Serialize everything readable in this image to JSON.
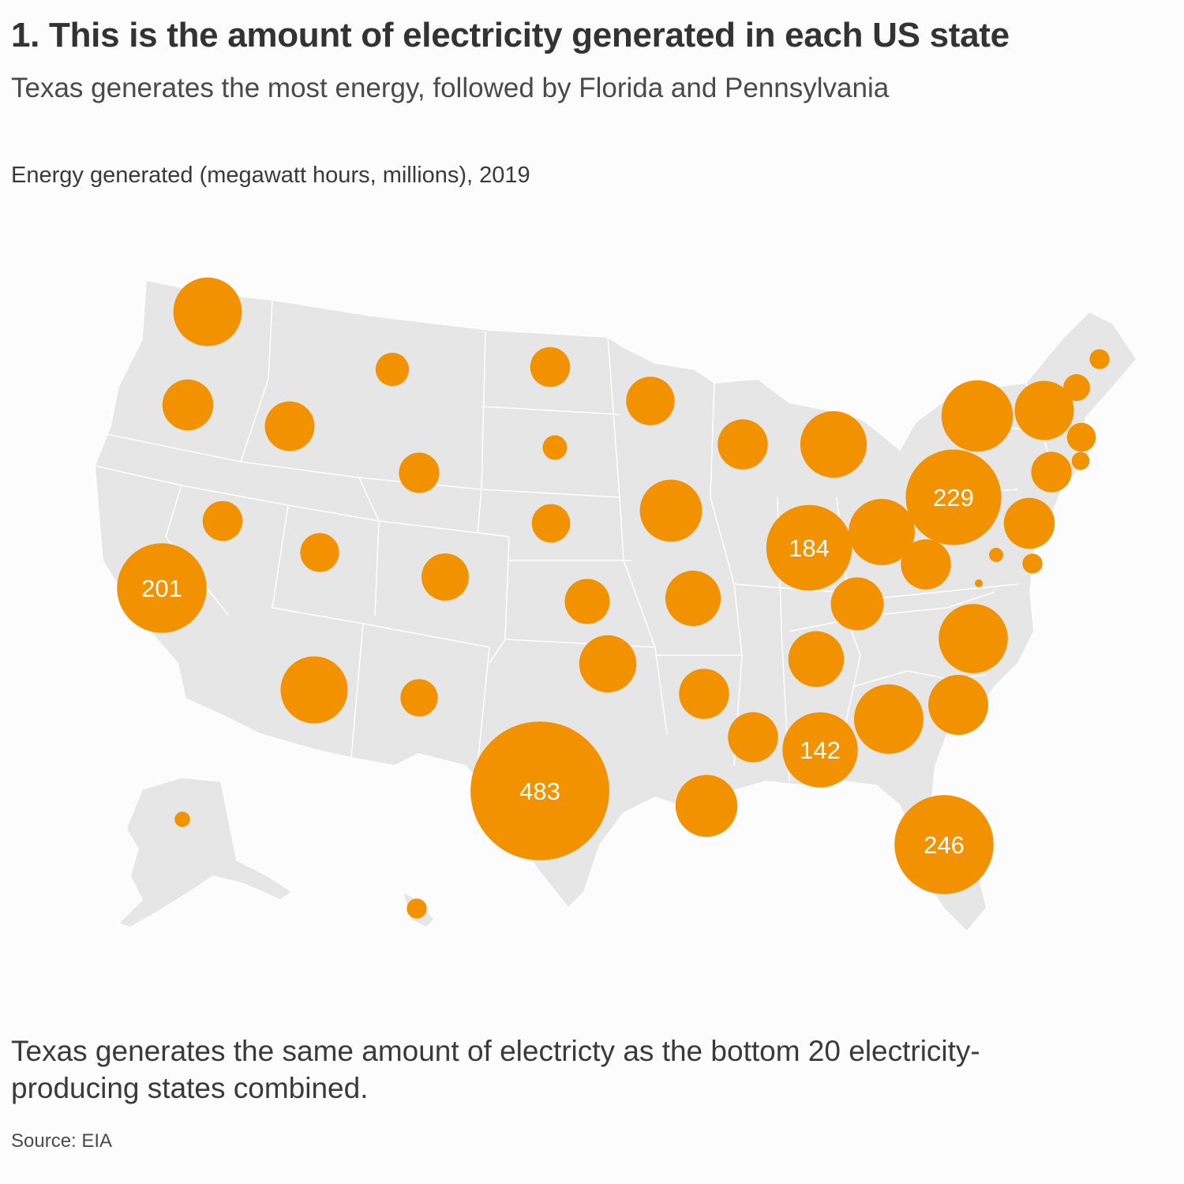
{
  "title": "1. This is the amount of electricity generated in each US state",
  "subtitle": "Texas generates the most energy, followed by Florida and Pennsylvania",
  "unit_label": "Energy generated (megawatt hours, millions), 2019",
  "note": "Texas generates the same amount of electricty as the bottom 20 electricity-producing states combined.",
  "source": "Source: EIA",
  "colors": {
    "bubble": "#f29200",
    "land": "#e6e6e6",
    "border": "#ffffff",
    "label": "#ffffff"
  },
  "chart_data": {
    "type": "proportional-symbol-map",
    "value_unit": "megawatt hours, millions",
    "year": "2019",
    "states": [
      {
        "state": "WA",
        "value": 118,
        "label": ""
      },
      {
        "state": "OR",
        "value": 65,
        "label": ""
      },
      {
        "state": "CA",
        "value": 201,
        "label": "201"
      },
      {
        "state": "NV",
        "value": 40,
        "label": ""
      },
      {
        "state": "ID",
        "value": 62,
        "label": ""
      },
      {
        "state": "MT",
        "value": 28,
        "label": ""
      },
      {
        "state": "WY",
        "value": 41,
        "label": ""
      },
      {
        "state": "UT",
        "value": 38,
        "label": ""
      },
      {
        "state": "AZ",
        "value": 113,
        "label": ""
      },
      {
        "state": "NM",
        "value": 35,
        "label": ""
      },
      {
        "state": "CO",
        "value": 56,
        "label": ""
      },
      {
        "state": "ND",
        "value": 40,
        "label": ""
      },
      {
        "state": "SD",
        "value": 15,
        "label": ""
      },
      {
        "state": "NE",
        "value": 37,
        "label": ""
      },
      {
        "state": "KS",
        "value": 51,
        "label": ""
      },
      {
        "state": "OK",
        "value": 82,
        "label": ""
      },
      {
        "state": "TX",
        "value": 483,
        "label": "483"
      },
      {
        "state": "MN",
        "value": 59,
        "label": ""
      },
      {
        "state": "IA",
        "value": 97,
        "label": ""
      },
      {
        "state": "MO",
        "value": 77,
        "label": ""
      },
      {
        "state": "AR",
        "value": 63,
        "label": ""
      },
      {
        "state": "LA",
        "value": 96,
        "label": ""
      },
      {
        "state": "WI",
        "value": 63,
        "label": ""
      },
      {
        "state": "IL",
        "value": 184,
        "label": "184"
      },
      {
        "state": "MI",
        "value": 111,
        "label": ""
      },
      {
        "state": "IN",
        "value": 110,
        "label": ""
      },
      {
        "state": "OH",
        "value": 63,
        "label": ""
      },
      {
        "state": "KY",
        "value": 70,
        "label": ""
      },
      {
        "state": "TN",
        "value": 78,
        "label": ""
      },
      {
        "state": "MS",
        "value": 63,
        "label": ""
      },
      {
        "state": "AL",
        "value": 142,
        "label": "142"
      },
      {
        "state": "GA",
        "value": 121,
        "label": ""
      },
      {
        "state": "FL",
        "value": 246,
        "label": "246"
      },
      {
        "state": "SC",
        "value": 90,
        "label": ""
      },
      {
        "state": "NC",
        "value": 120,
        "label": ""
      },
      {
        "state": "VA",
        "value": 40,
        "label": ""
      },
      {
        "state": "WV",
        "value": 1,
        "label": ""
      },
      {
        "state": "MD",
        "value": 5,
        "label": ""
      },
      {
        "state": "DE",
        "value": 10,
        "label": ""
      },
      {
        "state": "PA",
        "value": 229,
        "label": "229"
      },
      {
        "state": "NJ",
        "value": 65,
        "label": ""
      },
      {
        "state": "NY",
        "value": 128,
        "label": ""
      },
      {
        "state": "CT",
        "value": 41,
        "label": ""
      },
      {
        "state": "RI",
        "value": 8,
        "label": ""
      },
      {
        "state": "MA",
        "value": 21,
        "label": ""
      },
      {
        "state": "VT",
        "value": 88,
        "label": ""
      },
      {
        "state": "NH",
        "value": 18,
        "label": ""
      },
      {
        "state": "ME",
        "value": 10,
        "label": ""
      },
      {
        "state": "AK",
        "value": 6,
        "label": ""
      },
      {
        "state": "HI",
        "value": 10,
        "label": ""
      }
    ]
  }
}
